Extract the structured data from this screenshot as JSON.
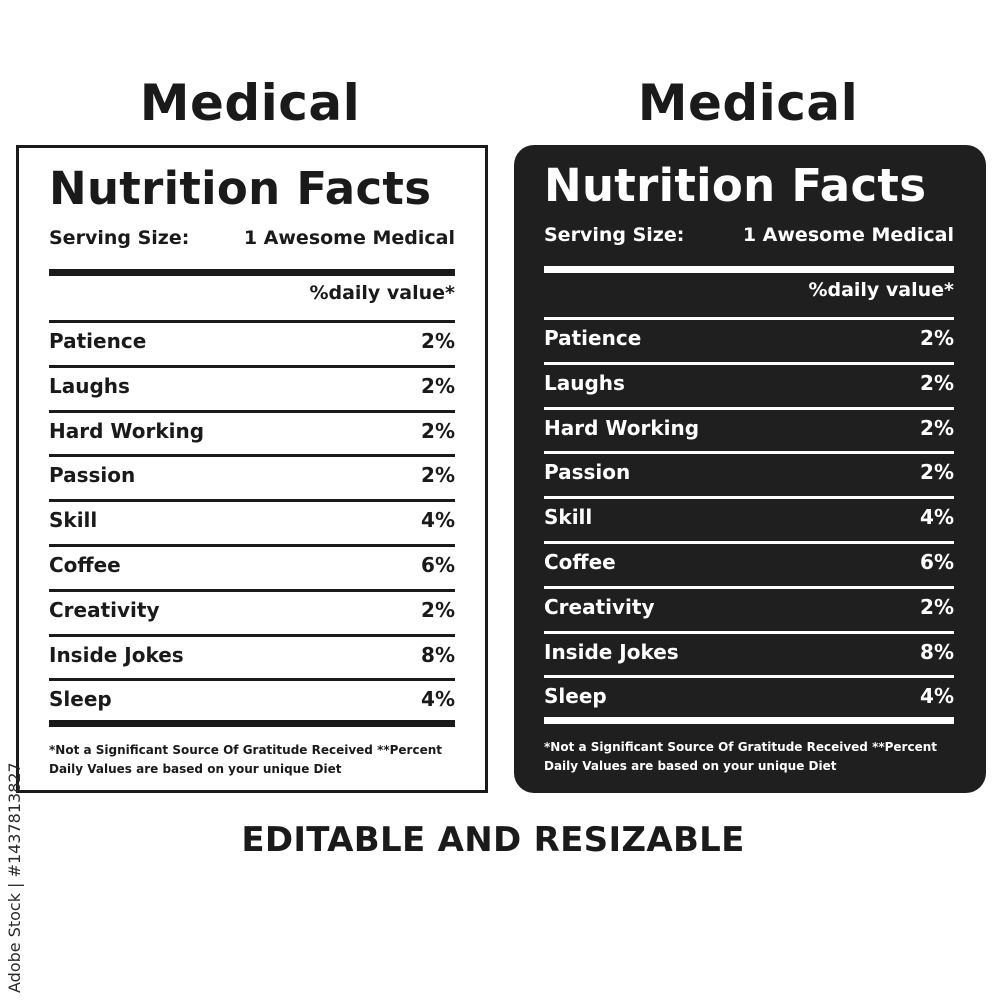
{
  "headline": "Medical",
  "label": {
    "title": "Nutrition Facts",
    "serving_label": "Serving Size:",
    "serving_value": "1 Awesome Medical",
    "dv_header": "%daily value*",
    "rows": [
      {
        "name": "Patience",
        "value": "2%"
      },
      {
        "name": "Laughs",
        "value": "2%"
      },
      {
        "name": "Hard Working",
        "value": "2%"
      },
      {
        "name": "Passion",
        "value": "2%"
      },
      {
        "name": "Skill",
        "value": "4%"
      },
      {
        "name": "Coffee",
        "value": "6%"
      },
      {
        "name": "Creativity",
        "value": "2%"
      },
      {
        "name": "Inside Jokes",
        "value": "8%"
      },
      {
        "name": "Sleep",
        "value": "4%"
      }
    ],
    "footnote_line1": "*Not a Significant Source Of Gratitude Received **Percent",
    "footnote_line2": "Daily Values are based on your  unique Diet"
  },
  "tagline": "EDITABLE AND RESIZABLE",
  "stock_id": "Adobe Stock | #1437813827",
  "colors": {
    "ink": "#1a1a1a",
    "dark_panel": "#1f1f1f",
    "paper": "#ffffff"
  }
}
